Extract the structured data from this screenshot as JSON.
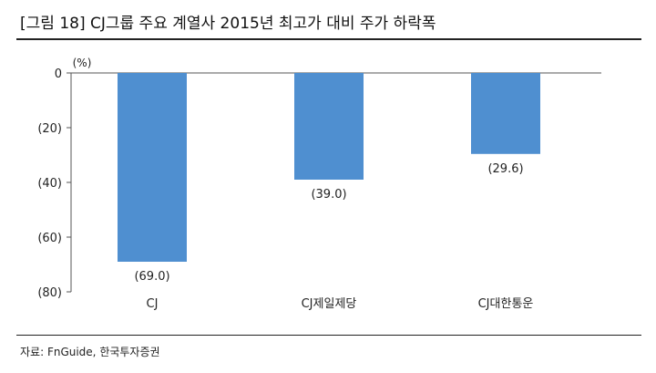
{
  "header": {
    "title": "[그림 18] CJ그룹 주요 계열사 2015년 최고가 대비 주가 하락폭"
  },
  "footer": {
    "source": "자료: FnGuide, 한국투자증권"
  },
  "chart_data": {
    "type": "bar",
    "title": "[그림 18] CJ그룹 주요 계열사 2015년 최고가 대비 주가 하락폭",
    "unit_label": "(%)",
    "categories": [
      "CJ",
      "CJ제일제당",
      "CJ대한통운"
    ],
    "values": [
      -69.0,
      -39.0,
      -29.6
    ],
    "value_labels": [
      "(69.0)",
      "(39.0)",
      "(29.6)"
    ],
    "ylim": [
      -80,
      0
    ],
    "yticks": [
      0,
      -20,
      -40,
      -60,
      -80
    ],
    "ytick_labels": [
      "0",
      "(20)",
      "(40)",
      "(60)",
      "(80)"
    ],
    "bar_color": "#4f8fd0",
    "grid": false,
    "legend": "none"
  }
}
